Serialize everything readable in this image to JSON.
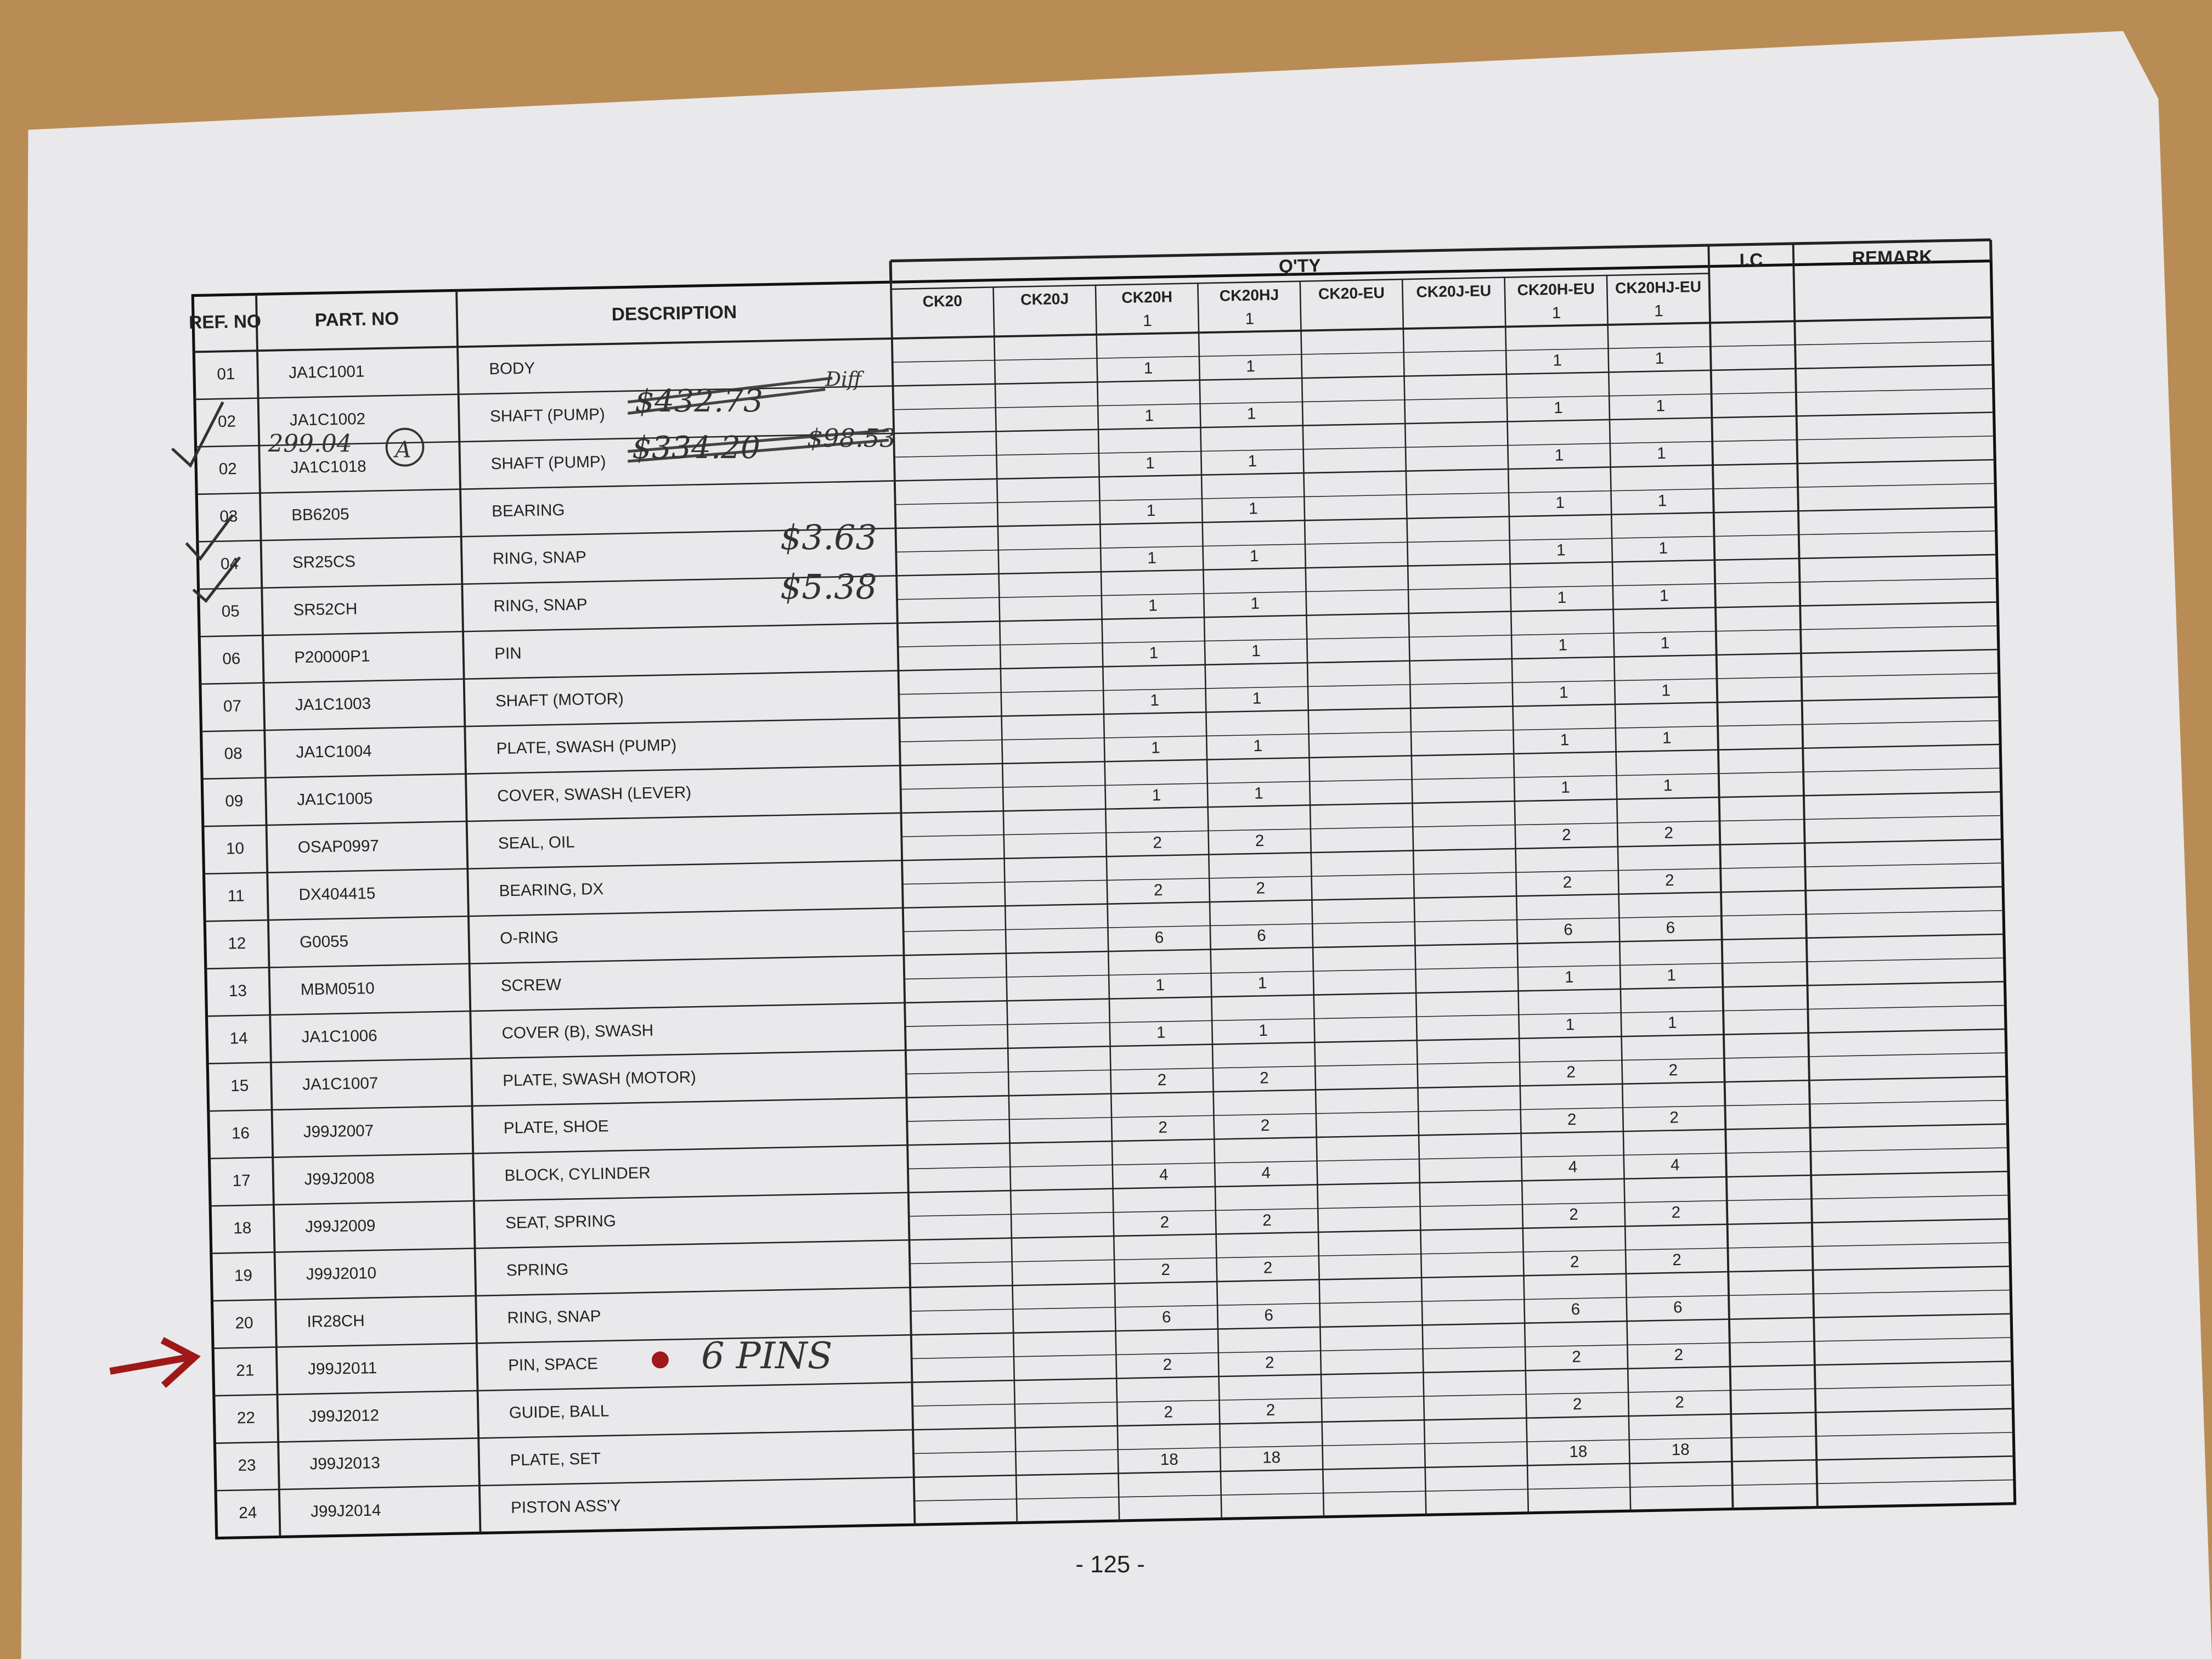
{
  "table": {
    "headers": [
      "REF. NO",
      "PART. NO",
      "DESCRIPTION"
    ],
    "qty_title": "Q'TY",
    "qty_headers": [
      {
        "label": "CK20"
      },
      {
        "label": "CK20J"
      },
      {
        "label": "CK20H",
        "values": [
          1,
          1,
          1,
          1,
          1,
          1,
          1,
          1,
          1,
          1,
          1,
          2,
          2,
          6,
          1,
          1,
          2,
          2,
          4,
          2,
          2,
          6,
          2,
          2,
          18
        ]
      },
      {
        "label": "CK20HJ",
        "values": [
          1,
          1,
          1,
          1,
          1,
          1,
          1,
          1,
          1,
          1,
          1,
          2,
          2,
          6,
          1,
          1,
          2,
          2,
          4,
          2,
          2,
          6,
          2,
          2,
          18
        ]
      },
      {
        "label": "CK20-EU"
      },
      {
        "label": "CK20J-EU"
      },
      {
        "label": "CK20H-EU",
        "values": [
          1,
          1,
          1,
          1,
          1,
          1,
          1,
          1,
          1,
          1,
          1,
          2,
          2,
          6,
          1,
          1,
          2,
          2,
          4,
          2,
          2,
          6,
          2,
          2,
          18
        ]
      },
      {
        "label": "CK20HJ-EU",
        "values": [
          1,
          1,
          1,
          1,
          1,
          1,
          1,
          1,
          1,
          1,
          1,
          2,
          2,
          6,
          1,
          1,
          2,
          2,
          4,
          2,
          2,
          6,
          2,
          2,
          18
        ]
      }
    ],
    "ic_header": "I.C",
    "remark_header": "REMARK",
    "rows": [
      [
        "01",
        "JA1C1001",
        "BODY"
      ],
      [
        "02",
        "JA1C1002",
        "SHAFT (PUMP)"
      ],
      [
        "02",
        "JA1C1018",
        "SHAFT (PUMP)"
      ],
      [
        "03",
        "BB6205",
        "BEARING"
      ],
      [
        "04",
        "SR25CS",
        "RING, SNAP"
      ],
      [
        "05",
        "SR52CH",
        "RING, SNAP"
      ],
      [
        "06",
        "P20000P1",
        "PIN"
      ],
      [
        "07",
        "JA1C1003",
        "SHAFT (MOTOR)"
      ],
      [
        "08",
        "JA1C1004",
        "PLATE, SWASH (PUMP)"
      ],
      [
        "09",
        "JA1C1005",
        "COVER, SWASH (LEVER)"
      ],
      [
        "10",
        "OSAP0997",
        "SEAL, OIL"
      ],
      [
        "11",
        "DX404415",
        "BEARING, DX"
      ],
      [
        "12",
        "G0055",
        "O-RING"
      ],
      [
        "13",
        "MBM0510",
        "SCREW"
      ],
      [
        "14",
        "JA1C1006",
        "COVER (B), SWASH"
      ],
      [
        "15",
        "JA1C1007",
        "PLATE, SWASH (MOTOR)"
      ],
      [
        "16",
        "J99J2007",
        "PLATE, SHOE"
      ],
      [
        "17",
        "J99J2008",
        "BLOCK, CYLINDER"
      ],
      [
        "18",
        "J99J2009",
        "SEAT, SPRING"
      ],
      [
        "19",
        "J99J2010",
        "SPRING"
      ],
      [
        "20",
        "IR28CH",
        "RING, SNAP"
      ],
      [
        "21",
        "J99J2011",
        "PIN, SPACE"
      ],
      [
        "22",
        "J99J2012",
        "GUIDE, BALL"
      ],
      [
        "23",
        "J99J2013",
        "PLATE, SET"
      ],
      [
        "24",
        "J99J2014",
        "PISTON ASS'Y"
      ]
    ]
  },
  "handwritten": [
    "$432.73",
    "Diff",
    "299.04",
    "A",
    "$334.20",
    "$98.53",
    "$3.63",
    "$5.38",
    "6 PINS"
  ],
  "page_number": "- 125 -"
}
